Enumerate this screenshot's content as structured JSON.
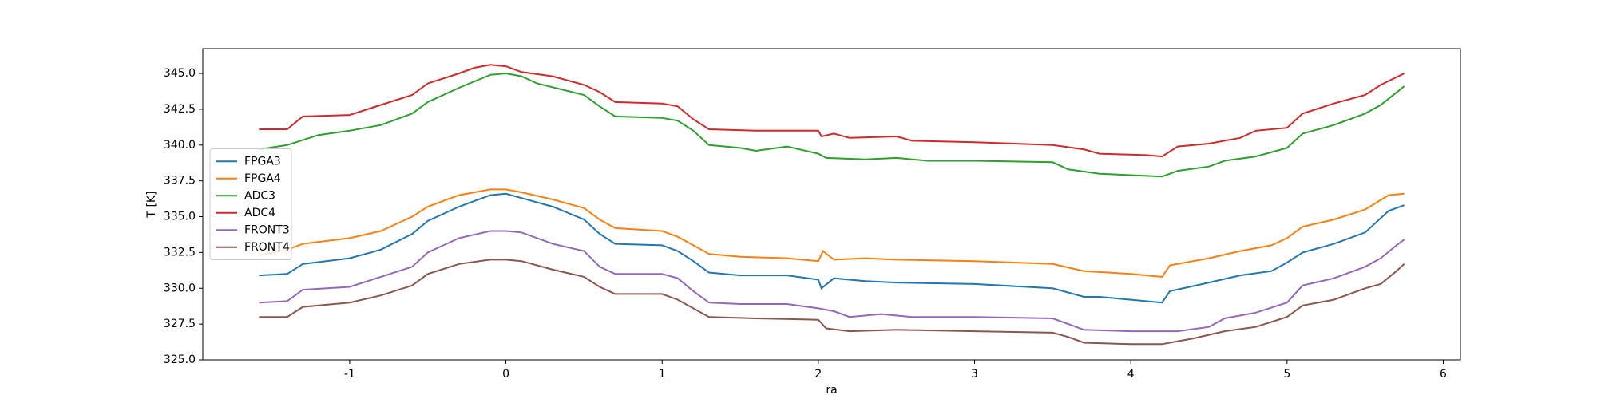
{
  "chart_data": {
    "type": "line",
    "xlabel": "ra",
    "ylabel": "T [K]",
    "xlim": [
      -1.94,
      6.11
    ],
    "ylim": [
      325,
      346.73
    ],
    "xticks": [
      -1,
      0,
      1,
      2,
      3,
      4,
      5,
      6
    ],
    "yticks": [
      {
        "value": 325,
        "label": "325.0"
      },
      {
        "value": 327.5,
        "label": "327.5"
      },
      {
        "value": 330,
        "label": "330.0"
      },
      {
        "value": 332.5,
        "label": "332.5"
      },
      {
        "value": 335,
        "label": "335.0"
      },
      {
        "value": 337.5,
        "label": "337.5"
      },
      {
        "value": 340,
        "label": "340.0"
      },
      {
        "value": 342.5,
        "label": "342.5"
      },
      {
        "value": 345,
        "label": "345.0"
      }
    ],
    "grid": false,
    "legend": "center left",
    "series": [
      {
        "name": "FPGA3",
        "color": "#1f77b4",
        "x": [
          -1.58,
          -1.4,
          -1.3,
          -1.0,
          -0.8,
          -0.6,
          -0.5,
          -0.3,
          -0.1,
          0,
          0.1,
          0.3,
          0.5,
          0.6,
          0.7,
          1.0,
          1.1,
          1.2,
          1.3,
          1.5,
          1.8,
          2.0,
          2.02,
          2.1,
          2.3,
          2.5,
          3.0,
          3.5,
          3.7,
          3.8,
          4.0,
          4.2,
          4.25,
          4.5,
          4.7,
          4.9,
          5.0,
          5.1,
          5.3,
          5.5,
          5.65,
          5.75
        ],
        "values": [
          330.9,
          331.0,
          331.7,
          332.1,
          332.7,
          333.8,
          334.7,
          335.7,
          336.5,
          336.6,
          336.3,
          335.7,
          334.8,
          333.8,
          333.1,
          333.0,
          332.6,
          331.9,
          331.1,
          330.9,
          330.9,
          330.6,
          330.0,
          330.7,
          330.5,
          330.4,
          330.3,
          330.0,
          329.4,
          329.4,
          329.2,
          329.0,
          329.8,
          330.4,
          330.9,
          331.2,
          331.8,
          332.5,
          333.1,
          333.9,
          335.4,
          335.8
        ]
      },
      {
        "name": "FPGA4",
        "color": "#ff7f0e",
        "x": [
          -1.58,
          -1.4,
          -1.3,
          -1.0,
          -0.8,
          -0.6,
          -0.5,
          -0.3,
          -0.1,
          0,
          0.1,
          0.3,
          0.5,
          0.6,
          0.7,
          1.0,
          1.1,
          1.2,
          1.3,
          1.5,
          1.8,
          2.0,
          2.03,
          2.1,
          2.3,
          2.5,
          3.0,
          3.5,
          3.7,
          4.0,
          4.2,
          4.25,
          4.5,
          4.7,
          4.9,
          5.0,
          5.1,
          5.3,
          5.5,
          5.65,
          5.75
        ],
        "values": [
          332.3,
          332.7,
          333.1,
          333.5,
          334.0,
          335.0,
          335.7,
          336.5,
          336.9,
          336.9,
          336.7,
          336.2,
          335.6,
          334.8,
          334.2,
          334.0,
          333.6,
          333.0,
          332.4,
          332.2,
          332.1,
          331.9,
          332.6,
          332.0,
          332.1,
          332.0,
          331.9,
          331.7,
          331.2,
          331.0,
          330.8,
          331.6,
          332.1,
          332.6,
          333.0,
          333.5,
          334.3,
          334.8,
          335.5,
          336.5,
          336.6
        ]
      },
      {
        "name": "ADC3",
        "color": "#2ca02c",
        "x": [
          -1.58,
          -1.4,
          -1.2,
          -1.0,
          -0.8,
          -0.6,
          -0.5,
          -0.3,
          -0.1,
          0,
          0.1,
          0.2,
          0.5,
          0.6,
          0.7,
          1.0,
          1.1,
          1.2,
          1.3,
          1.5,
          1.6,
          1.8,
          2.0,
          2.05,
          2.3,
          2.5,
          2.7,
          3.0,
          3.5,
          3.6,
          3.8,
          4.0,
          4.2,
          4.3,
          4.5,
          4.6,
          4.8,
          5.0,
          5.1,
          5.3,
          5.5,
          5.6,
          5.75
        ],
        "values": [
          339.7,
          340.0,
          340.7,
          341.0,
          341.4,
          342.2,
          343.0,
          344.0,
          344.9,
          345.0,
          344.8,
          344.3,
          343.5,
          342.7,
          342.0,
          341.9,
          341.7,
          341.0,
          340.0,
          339.8,
          339.6,
          339.9,
          339.4,
          339.1,
          339.0,
          339.1,
          338.9,
          338.9,
          338.8,
          338.3,
          338.0,
          337.9,
          337.8,
          338.2,
          338.5,
          338.9,
          339.2,
          339.8,
          340.8,
          341.4,
          342.2,
          342.8,
          344.1
        ]
      },
      {
        "name": "ADC4",
        "color": "#d62728",
        "x": [
          -1.58,
          -1.4,
          -1.3,
          -1.0,
          -0.8,
          -0.6,
          -0.5,
          -0.3,
          -0.2,
          -0.1,
          0,
          0.1,
          0.3,
          0.5,
          0.6,
          0.7,
          1.0,
          1.1,
          1.2,
          1.3,
          1.6,
          2.0,
          2.02,
          2.1,
          2.2,
          2.5,
          2.6,
          3.0,
          3.5,
          3.7,
          3.8,
          4.1,
          4.2,
          4.3,
          4.5,
          4.7,
          4.8,
          5.0,
          5.1,
          5.3,
          5.5,
          5.6,
          5.75
        ],
        "values": [
          341.1,
          341.1,
          342.0,
          342.1,
          342.8,
          343.5,
          344.3,
          345.0,
          345.4,
          345.6,
          345.5,
          345.1,
          344.8,
          344.2,
          343.7,
          343.0,
          342.9,
          342.7,
          341.8,
          341.1,
          341.0,
          341.0,
          340.6,
          340.8,
          340.5,
          340.6,
          340.3,
          340.2,
          340.0,
          339.7,
          339.4,
          339.3,
          339.2,
          339.9,
          340.1,
          340.5,
          341.0,
          341.2,
          342.2,
          342.9,
          343.5,
          344.2,
          345.0
        ]
      },
      {
        "name": "FRONT3",
        "color": "#9467bd",
        "x": [
          -1.58,
          -1.4,
          -1.3,
          -1.0,
          -0.8,
          -0.6,
          -0.5,
          -0.3,
          -0.1,
          0,
          0.1,
          0.3,
          0.5,
          0.6,
          0.7,
          1.0,
          1.1,
          1.2,
          1.3,
          1.5,
          1.8,
          2.0,
          2.1,
          2.2,
          2.4,
          2.6,
          3.0,
          3.5,
          3.6,
          3.7,
          4.0,
          4.3,
          4.5,
          4.6,
          4.8,
          5.0,
          5.1,
          5.3,
          5.5,
          5.6,
          5.7,
          5.75
        ],
        "values": [
          329.0,
          329.1,
          329.9,
          330.1,
          330.8,
          331.5,
          332.5,
          333.5,
          334.0,
          334.0,
          333.9,
          333.1,
          332.6,
          331.5,
          331.0,
          331.0,
          330.7,
          329.8,
          329.0,
          328.9,
          328.9,
          328.6,
          328.4,
          328.0,
          328.2,
          328.0,
          328.0,
          327.9,
          327.5,
          327.1,
          327.0,
          327.0,
          327.3,
          327.9,
          328.3,
          329.0,
          330.2,
          330.7,
          331.5,
          332.1,
          333.0,
          333.4
        ]
      },
      {
        "name": "FRONT4",
        "color": "#8c564b",
        "x": [
          -1.58,
          -1.4,
          -1.3,
          -1.0,
          -0.8,
          -0.6,
          -0.5,
          -0.3,
          -0.1,
          0,
          0.1,
          0.3,
          0.5,
          0.6,
          0.7,
          1.0,
          1.1,
          1.2,
          1.3,
          1.6,
          2.0,
          2.05,
          2.2,
          2.5,
          3.0,
          3.5,
          3.6,
          3.7,
          4.0,
          4.2,
          4.4,
          4.6,
          4.8,
          5.0,
          5.1,
          5.3,
          5.5,
          5.6,
          5.7,
          5.75
        ],
        "values": [
          328.0,
          328.0,
          328.7,
          329.0,
          329.5,
          330.2,
          331.0,
          331.7,
          332.0,
          332.0,
          331.9,
          331.3,
          330.8,
          330.1,
          329.6,
          329.6,
          329.2,
          328.6,
          328.0,
          327.9,
          327.8,
          327.2,
          327.0,
          327.1,
          327.0,
          326.9,
          326.6,
          326.2,
          326.1,
          326.1,
          326.5,
          327.0,
          327.3,
          328.0,
          328.8,
          329.2,
          330.0,
          330.3,
          331.2,
          331.7
        ]
      }
    ]
  }
}
